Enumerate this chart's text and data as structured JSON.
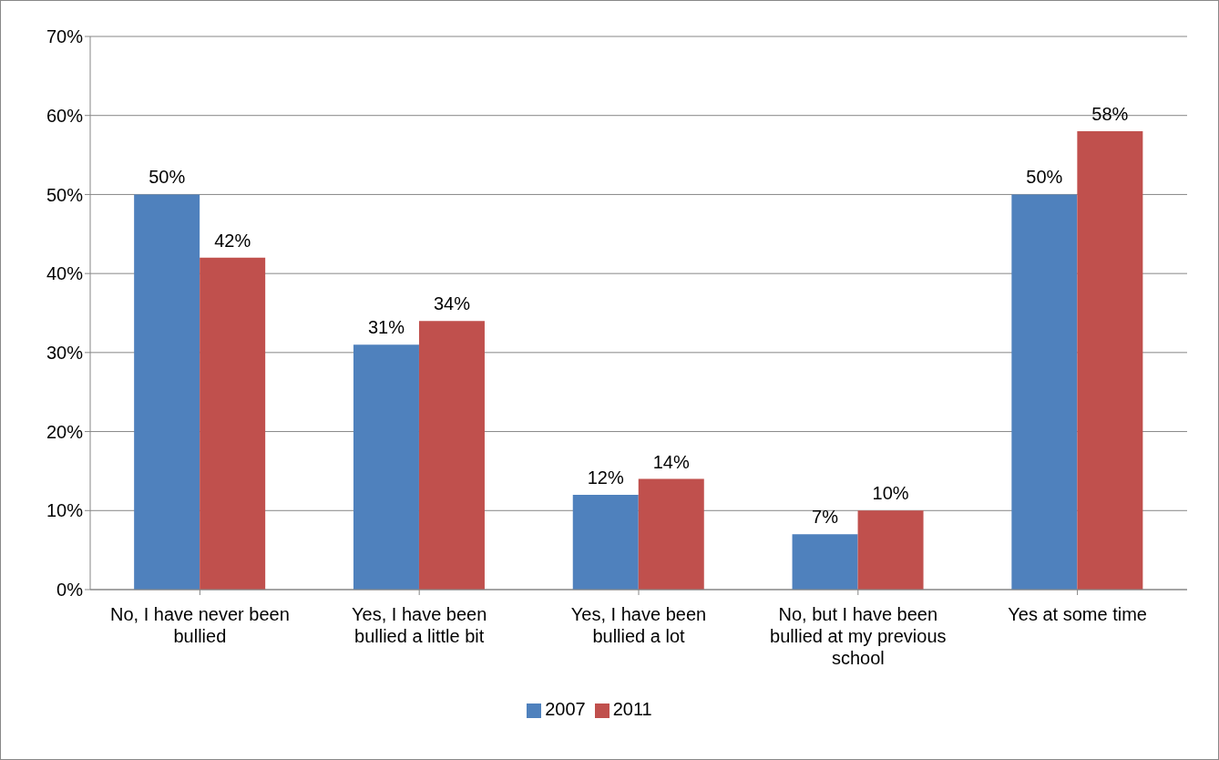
{
  "chart_data": {
    "type": "bar",
    "categories": [
      "No, I have never been bullied",
      "Yes, I have been bullied a little bit",
      "Yes, I have been bullied a lot",
      "No, but I have been bullied at my previous school",
      "Yes at some time"
    ],
    "series": [
      {
        "name": "2007",
        "color": "#4f81bd",
        "values": [
          50,
          31,
          12,
          7,
          50
        ],
        "value_labels": [
          "50%",
          "31%",
          "12%",
          "7%",
          "50%"
        ]
      },
      {
        "name": "2011",
        "color": "#c0504d",
        "values": [
          42,
          34,
          14,
          10,
          58
        ],
        "value_labels": [
          "42%",
          "34%",
          "14%",
          "10%",
          "58%"
        ]
      }
    ],
    "ylim": [
      0,
      70
    ],
    "yticks": [
      {
        "value": 0,
        "label": "0%"
      },
      {
        "value": 10,
        "label": "10%"
      },
      {
        "value": 20,
        "label": "20%"
      },
      {
        "value": 30,
        "label": "30%"
      },
      {
        "value": 40,
        "label": "40%"
      },
      {
        "value": 50,
        "label": "50%"
      },
      {
        "value": 60,
        "label": "60%"
      },
      {
        "value": 70,
        "label": "70%"
      }
    ],
    "grid": "y",
    "legend": "bottom"
  }
}
